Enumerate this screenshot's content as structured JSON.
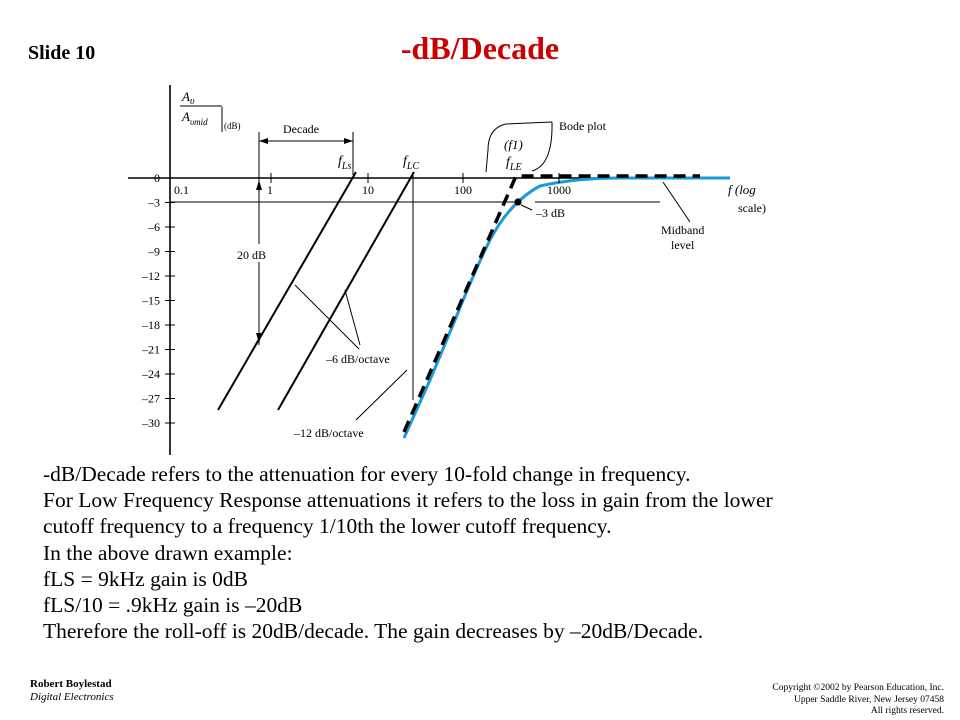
{
  "slide_label": "Slide 10",
  "title": "-dB/Decade",
  "colors": {
    "title": "#cc0000",
    "actual_response": "#1a9ad6",
    "bode_plot": "#000000"
  },
  "diagram": {
    "y_axis_label_top": "A",
    "y_axis_label_top_sub": "υ",
    "y_axis_label_bottom": "A",
    "y_axis_label_bottom_sub": "υmid",
    "y_axis_label_unit": "(dB)",
    "y_ticks": [
      "0",
      "–3",
      "–6",
      "–9",
      "–12",
      "–15",
      "–18",
      "–21",
      "–24",
      "–27",
      "–30"
    ],
    "x_ticks": [
      "0.1",
      "1",
      "10",
      "100",
      "1000"
    ],
    "x_axis_label_main": "f (log",
    "x_axis_label_sub": "scale)",
    "decade_label": "Decade",
    "twenty_db_label": "20 dB",
    "fls_main": "f",
    "fls_sub": "Ls",
    "flc_main": "f",
    "flc_sub": "LC",
    "f1_label": "(f1)",
    "fle_main": "f",
    "fle_sub": "LE",
    "bode_plot_label": "Bode plot",
    "minus3db_label": "–3 dB",
    "midband_label_1": "Midband",
    "midband_label_2": "level",
    "slope6_label": "–6 dB/octave",
    "slope12_label": "–12 dB/octave"
  },
  "body_lines": [
    "-dB/Decade refers to the attenuation for every 10-fold change in frequency.",
    "For Low Frequency Response attenuations it refers to the loss in gain from the lower",
    "cutoff frequency to a frequency 1/10th the lower cutoff frequency.",
    "In the above drawn example:",
    "fLS = 9kHz gain is 0dB",
    "fLS/10 = .9kHz gain is –20dB",
    "Therefore the roll-off is 20dB/decade. The gain decreases by –20dB/Decade."
  ],
  "footer": {
    "author": "Robert Boylestad",
    "course": "Digital Electronics",
    "copyright_line1": "Copyright ©2002 by Pearson Education, Inc.",
    "copyright_line2": "Upper Saddle River, New Jersey 07458",
    "copyright_line3": "All rights reserved."
  }
}
